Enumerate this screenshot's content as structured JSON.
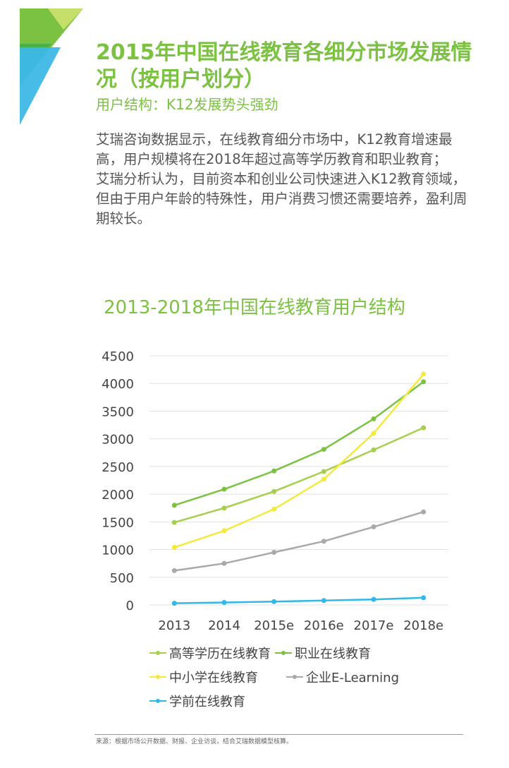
{
  "header": {
    "title": "2015年中国在线教育各细分市场发展情况（按用户划分）",
    "subtitle": "用户结构：K12发展势头强劲",
    "body": [
      "艾瑞咨询数据显示，在线教育细分市场中，K12教育增速最高，用户规模将在2018年超过高等学历教育和职业教育；",
      "艾瑞分析认为，目前资本和创业公司快速进入K12教育领域，但由于用户年龄的特殊性，用户消费习惯还需要培养，盈利周期较长。"
    ],
    "logo_colors": [
      "#7cc242",
      "#4ab04a",
      "#3cb8e6"
    ]
  },
  "chart_data": {
    "type": "line",
    "title": "2013-2018年中国在线教育用户结构",
    "categories": [
      "2013",
      "2014",
      "2015e",
      "2016e",
      "2017e",
      "2018e"
    ],
    "y_ticks": [
      "4500",
      "4000",
      "3500",
      "3000",
      "2500",
      "2000",
      "1500",
      "1000",
      "500",
      "0"
    ],
    "ylim": [
      0,
      4500
    ],
    "grid": true,
    "legend_position": "bottom",
    "series": [
      {
        "name": "高等学历在线教育",
        "color": "#a5cf4c",
        "values": [
          1490,
          1750,
          2050,
          2410,
          2800,
          3200
        ]
      },
      {
        "name": "职业在线教育",
        "color": "#7cc242",
        "values": [
          1800,
          2090,
          2420,
          2810,
          3360,
          4030
        ]
      },
      {
        "name": "中小学在线教育",
        "color": "#f4ea3e",
        "values": [
          1040,
          1340,
          1730,
          2270,
          3100,
          4170
        ]
      },
      {
        "name": "企业E-Learning",
        "color": "#a9a9a9",
        "values": [
          620,
          750,
          950,
          1150,
          1410,
          1680
        ]
      },
      {
        "name": "学前在线教育",
        "color": "#30b9e8",
        "values": [
          30,
          45,
          60,
          80,
          100,
          130
        ]
      }
    ]
  },
  "footer": {
    "source": "来源：根据市场公开数据、财报、企业访谈，结合艾瑞数据模型核算。"
  }
}
